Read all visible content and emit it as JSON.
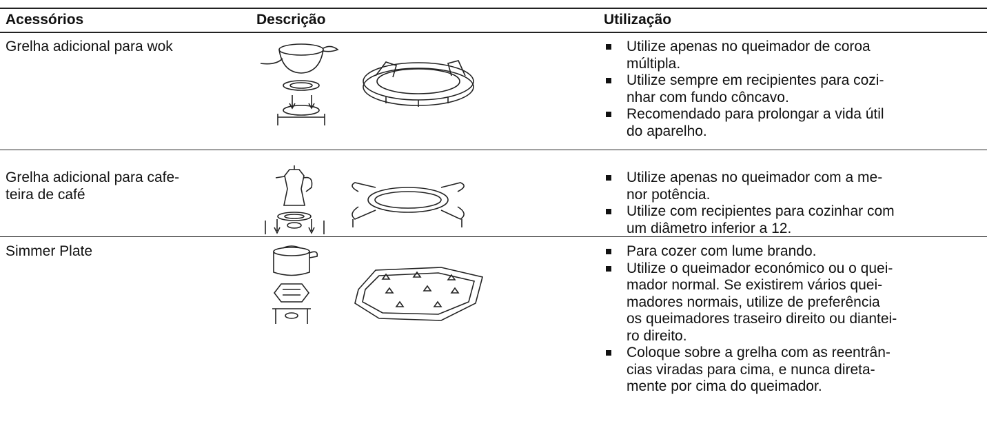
{
  "table": {
    "headers": [
      "Acessórios",
      "Descrição",
      "Utilização"
    ],
    "rows": [
      {
        "accessory": [
          "Grelha adicional para wok"
        ],
        "usage": [
          [
            "Utilize apenas no queimador de coroa",
            "múltipla."
          ],
          [
            "Utilize sempre em recipientes para cozi-",
            "nhar com fundo côncavo."
          ],
          [
            "Recomendado para prolongar a vida útil",
            "do aparelho."
          ]
        ]
      },
      {
        "accessory": [
          "Grelha adicional para cafe-",
          "teira de café"
        ],
        "usage": [
          [
            "Utilize apenas no queimador com a me-",
            "nor potência."
          ],
          [
            "Utilize com recipientes para cozinhar com",
            "um diâmetro inferior a 12."
          ]
        ]
      },
      {
        "accessory": [
          "Simmer Plate"
        ],
        "usage": [
          [
            "Para cozer com lume brando."
          ],
          [
            "Utilize o queimador económico ou o quei-",
            "mador normal. Se existirem vários quei-",
            "madores normais, utilize de preferência",
            "os queimadores traseiro direito ou diantei-",
            "ro direito."
          ],
          [
            "Coloque sobre a grelha com as reentrân-",
            "cias viradas para cima, e nunca direta-",
            "mente por cima do queimador."
          ]
        ]
      }
    ]
  }
}
